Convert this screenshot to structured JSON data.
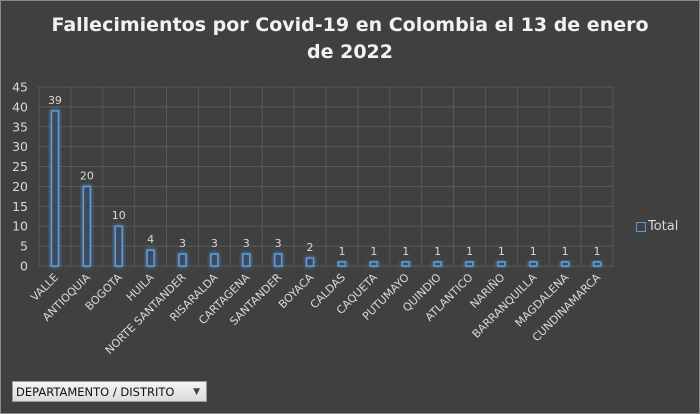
{
  "chart_data": {
    "type": "bar",
    "title": "Fallecimientos por Covid-19 en Colombia el 13 de enero de 2022",
    "title_lines": [
      "Fallecimientos por Covid-19 en Colombia el 13 de enero",
      "de 2022"
    ],
    "categories": [
      "VALLE",
      "ANTIOQUIA",
      "BOGOTA",
      "HUILA",
      "NORTE SANTANDER",
      "RISARALDA",
      "CARTAGENA",
      "SANTANDER",
      "BOYACA",
      "CALDAS",
      "CAQUETA",
      "PUTUMAYO",
      "QUINDIO",
      "ATLANTICO",
      "NARIÑO",
      "BARRANQUILLA",
      "MAGDALENA",
      "CUNDINAMARCA"
    ],
    "series": [
      {
        "name": "Total",
        "values": [
          39,
          20,
          10,
          4,
          3,
          3,
          3,
          3,
          2,
          1,
          1,
          1,
          1,
          1,
          1,
          1,
          1,
          1
        ]
      }
    ],
    "yticks": [
      0,
      5,
      10,
      15,
      20,
      25,
      30,
      35,
      40,
      45
    ],
    "ylim": [
      0,
      45
    ],
    "xlabel": "",
    "ylabel": "",
    "grid": true,
    "legend": "right",
    "colors": {
      "bar_stroke": "#5b9bd5",
      "background": "#404040",
      "grid": "#595959"
    }
  },
  "filter": {
    "label": "DEPARTAMENTO / DISTRITO",
    "icon": "dropdown-arrow-icon"
  }
}
